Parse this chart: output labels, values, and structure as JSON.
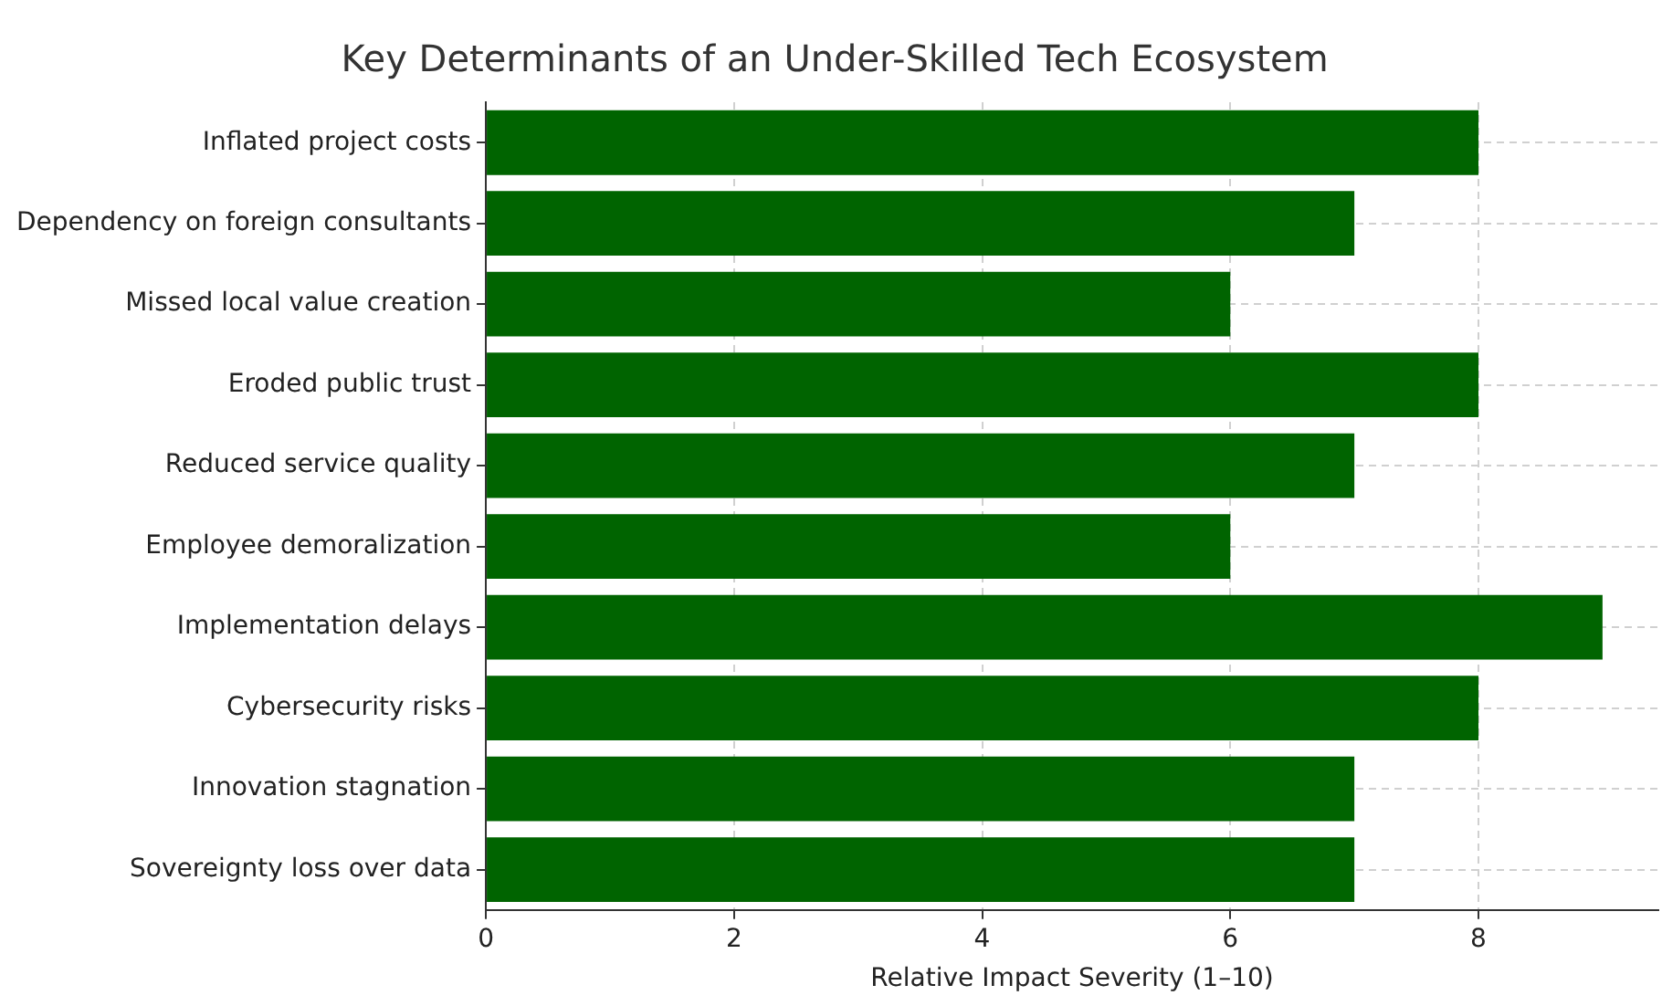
{
  "chart_data": {
    "type": "bar",
    "orientation": "horizontal",
    "title": "Key Determinants of an Under-Skilled Tech Ecosystem",
    "xlabel": "Relative Impact Severity (1–10)",
    "categories": [
      "Inflated project costs",
      "Dependency on foreign consultants",
      "Missed local value creation",
      "Eroded public trust",
      "Reduced service quality",
      "Employee demoralization",
      "Implementation delays",
      "Cybersecurity risks",
      "Innovation stagnation",
      "Sovereignty loss over data"
    ],
    "values": [
      8,
      7,
      6,
      8,
      7,
      6,
      9,
      8,
      7,
      7
    ],
    "color": "#006400",
    "xlim": [
      0,
      9.45
    ],
    "xticks": [
      0,
      2,
      4,
      6,
      8
    ],
    "grid": true
  }
}
